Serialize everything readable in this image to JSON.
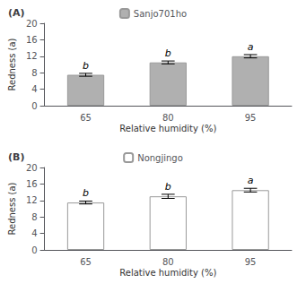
{
  "chart_data": [
    {
      "type": "bar",
      "title": "(A)",
      "categories": [
        "65",
        "80",
        "95"
      ],
      "series": [
        {
          "name": "Sanjo701ho",
          "color": "#b0b0b0",
          "values": [
            7.5,
            10.5,
            12.0
          ],
          "errors": [
            0.35,
            0.35,
            0.4
          ]
        }
      ],
      "annotations": [
        "b",
        "b",
        "a"
      ],
      "xlabel": "Relative humidity (%)",
      "ylabel": "Redness (a)",
      "ylim": [
        0,
        20
      ],
      "yticks": [
        0,
        4,
        8,
        12,
        16,
        20
      ],
      "grid": false,
      "legend": "top"
    },
    {
      "type": "bar",
      "title": "(B)",
      "categories": [
        "65",
        "80",
        "95"
      ],
      "series": [
        {
          "name": "Nongjingo",
          "color": "#ffffff",
          "values": [
            11.5,
            13.0,
            14.5
          ],
          "errors": [
            0.35,
            0.5,
            0.45
          ]
        }
      ],
      "annotations": [
        "b",
        "b",
        "a"
      ],
      "xlabel": "Relative humidity (%)",
      "ylabel": "Redness (a)",
      "ylim": [
        0,
        20
      ],
      "yticks": [
        0,
        4,
        8,
        12,
        16,
        20
      ],
      "grid": false,
      "legend": "top"
    }
  ]
}
